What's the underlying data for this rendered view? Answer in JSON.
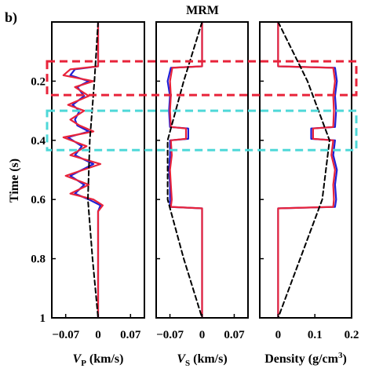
{
  "panel_label": "b)",
  "chart_data": {
    "type": "line",
    "title": "MRM",
    "ylabel": "Time (s)",
    "ylim": [
      0,
      1
    ],
    "y_reversed": true,
    "y_ticks": [
      0.2,
      0.4,
      0.6,
      0.8,
      1
    ],
    "y_tick_labels": [
      "0.2",
      "0.4",
      "0.6",
      "0.8",
      "1"
    ],
    "series_colors": {
      "blue": "#1f1fd6",
      "red": "#e8233a",
      "black": "#000000"
    },
    "highlight_boxes": [
      {
        "t_range": [
          0.133,
          0.247
        ],
        "color": "#e8233a",
        "style": "dashed"
      },
      {
        "t_range": [
          0.3,
          0.433
        ],
        "color": "#4fd8d8",
        "style": "dashed"
      }
    ],
    "panels": [
      {
        "key": "vp",
        "xlabel_main": "V",
        "xlabel_sub": "P",
        "xlabel_unit": " (km/s)",
        "xlim": [
          -0.1,
          0.1
        ],
        "x_ticks": [
          -0.07,
          0,
          0.07
        ],
        "x_tick_labels": [
          "−0.07",
          "0",
          "0.07"
        ],
        "series": [
          {
            "color": "blue",
            "style": "solid",
            "t": [
              0,
              0.15,
              0.16,
              0.18,
              0.2,
              0.22,
              0.25,
              0.28,
              0.3,
              0.33,
              0.35,
              0.37,
              0.39,
              0.42,
              0.45,
              0.48,
              0.52,
              0.55,
              0.58,
              0.6,
              0.62,
              0.64,
              0.7,
              0.8,
              1
            ],
            "x": [
              0,
              0,
              -0.05,
              -0.06,
              -0.02,
              -0.045,
              -0.03,
              -0.055,
              -0.04,
              -0.05,
              -0.045,
              -0.02,
              -0.065,
              -0.035,
              -0.05,
              -0.01,
              -0.06,
              -0.03,
              -0.05,
              -0.02,
              0.005,
              0,
              0,
              0,
              0
            ]
          },
          {
            "color": "red",
            "style": "solid",
            "t": [
              0,
              0.15,
              0.16,
              0.18,
              0.2,
              0.22,
              0.25,
              0.28,
              0.3,
              0.33,
              0.35,
              0.37,
              0.39,
              0.42,
              0.45,
              0.48,
              0.52,
              0.55,
              0.58,
              0.6,
              0.62,
              0.64,
              0.7,
              0.8,
              1
            ],
            "x": [
              0,
              0,
              -0.06,
              -0.075,
              -0.01,
              -0.05,
              -0.02,
              -0.065,
              -0.03,
              -0.06,
              -0.04,
              -0.01,
              -0.075,
              -0.025,
              -0.06,
              0.005,
              -0.07,
              -0.02,
              -0.06,
              -0.01,
              0.01,
              0,
              0,
              0,
              0
            ]
          },
          {
            "color": "black",
            "style": "dashed",
            "t": [
              0,
              0.2,
              0.4,
              0.6,
              0.8,
              1
            ],
            "x": [
              0,
              -0.008,
              -0.018,
              -0.022,
              -0.012,
              0
            ]
          }
        ]
      },
      {
        "key": "vs",
        "xlabel_main": "V",
        "xlabel_sub": "S",
        "xlabel_unit": " (km/s)",
        "xlim": [
          -0.1,
          0.1
        ],
        "x_ticks": [
          -0.07,
          0,
          0.07
        ],
        "x_tick_labels": [
          "−0.07",
          "0",
          "0.07"
        ],
        "series": [
          {
            "color": "blue",
            "style": "solid",
            "t": [
              0,
              0.15,
              0.155,
              0.2,
              0.25,
              0.3,
              0.355,
              0.36,
              0.395,
              0.4,
              0.45,
              0.5,
              0.55,
              0.6,
              0.625,
              0.63,
              1
            ],
            "x": [
              0,
              0,
              -0.068,
              -0.075,
              -0.07,
              -0.072,
              -0.07,
              -0.03,
              -0.03,
              -0.07,
              -0.07,
              -0.072,
              -0.07,
              -0.07,
              -0.07,
              0,
              0
            ]
          },
          {
            "color": "red",
            "style": "solid",
            "t": [
              0,
              0.15,
              0.155,
              0.2,
              0.25,
              0.3,
              0.355,
              0.36,
              0.395,
              0.4,
              0.45,
              0.5,
              0.55,
              0.6,
              0.625,
              0.63,
              1
            ],
            "x": [
              0,
              0,
              -0.065,
              -0.07,
              -0.068,
              -0.07,
              -0.068,
              -0.035,
              -0.035,
              -0.068,
              -0.066,
              -0.07,
              -0.068,
              -0.066,
              -0.068,
              0,
              0
            ]
          },
          {
            "color": "black",
            "style": "dashed",
            "t": [
              0,
              0.2,
              0.4,
              0.6,
              0.8,
              1
            ],
            "x": [
              0,
              -0.04,
              -0.075,
              -0.075,
              -0.04,
              0
            ]
          }
        ]
      },
      {
        "key": "density",
        "xlabel_main": "Density (g/cm",
        "xlabel_sub": "3",
        "xlabel_unit": ")",
        "xlim": [
          -0.05,
          0.2
        ],
        "x_ticks": [
          0,
          0.1,
          0.2
        ],
        "x_tick_labels": [
          "0",
          "0.1",
          "0.2"
        ],
        "series": [
          {
            "color": "blue",
            "style": "solid",
            "t": [
              0,
              0.15,
              0.155,
              0.2,
              0.25,
              0.3,
              0.355,
              0.36,
              0.395,
              0.4,
              0.45,
              0.5,
              0.55,
              0.6,
              0.625,
              0.63,
              1
            ],
            "x": [
              0,
              0,
              0.155,
              0.16,
              0.155,
              0.158,
              0.155,
              0.09,
              0.09,
              0.155,
              0.15,
              0.16,
              0.155,
              0.158,
              0.155,
              0,
              0
            ]
          },
          {
            "color": "red",
            "style": "solid",
            "t": [
              0,
              0.15,
              0.155,
              0.2,
              0.25,
              0.3,
              0.355,
              0.36,
              0.395,
              0.4,
              0.45,
              0.5,
              0.55,
              0.6,
              0.625,
              0.63,
              1
            ],
            "x": [
              0,
              0,
              0.15,
              0.155,
              0.15,
              0.152,
              0.15,
              0.095,
              0.095,
              0.15,
              0.145,
              0.155,
              0.15,
              0.152,
              0.15,
              0,
              0
            ]
          },
          {
            "color": "black",
            "style": "dashed",
            "t": [
              0,
              0.2,
              0.4,
              0.6,
              0.8,
              1
            ],
            "x": [
              0,
              0.08,
              0.14,
              0.12,
              0.06,
              0
            ]
          }
        ]
      }
    ]
  }
}
